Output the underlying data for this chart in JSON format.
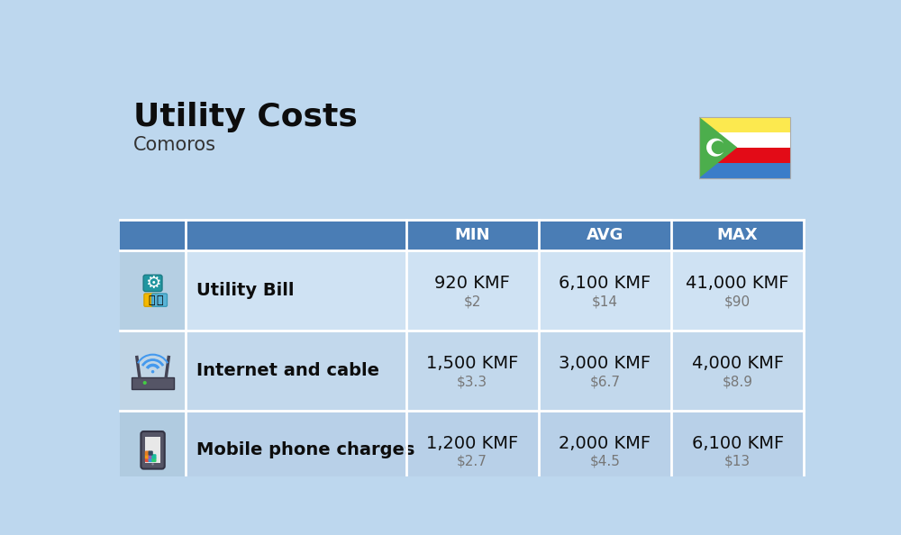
{
  "title": "Utility Costs",
  "subtitle": "Comoros",
  "background_color": "#bdd7ee",
  "header_bg_color": "#4a7db5",
  "header_text_color": "#ffffff",
  "table_row_light": "#cfe2f3",
  "table_row_dark": "#b8d0e8",
  "icon_col_bg_light": "#c5daea",
  "icon_col_bg_dark": "#b0cedf",
  "columns": [
    "MIN",
    "AVG",
    "MAX"
  ],
  "rows": [
    {
      "icon_label": "utility",
      "name": "Utility Bill",
      "min_kmf": "920 KMF",
      "min_usd": "$2",
      "avg_kmf": "6,100 KMF",
      "avg_usd": "$14",
      "max_kmf": "41,000 KMF",
      "max_usd": "$90"
    },
    {
      "icon_label": "internet",
      "name": "Internet and cable",
      "min_kmf": "1,500 KMF",
      "min_usd": "$3.3",
      "avg_kmf": "3,000 KMF",
      "avg_usd": "$6.7",
      "max_kmf": "4,000 KMF",
      "max_usd": "$8.9"
    },
    {
      "icon_label": "mobile",
      "name": "Mobile phone charges",
      "min_kmf": "1,200 KMF",
      "min_usd": "$2.7",
      "avg_kmf": "2,000 KMF",
      "avg_usd": "$4.5",
      "max_kmf": "6,100 KMF",
      "max_usd": "$13"
    }
  ],
  "title_fontsize": 26,
  "subtitle_fontsize": 15,
  "header_fontsize": 13,
  "cell_fontsize": 14,
  "cell_usd_fontsize": 11,
  "name_fontsize": 14,
  "flag_stripes": [
    "#fce94f",
    "#ffffff",
    "#e30b17",
    "#3a7dc9"
  ],
  "flag_green": "#4cae4c"
}
